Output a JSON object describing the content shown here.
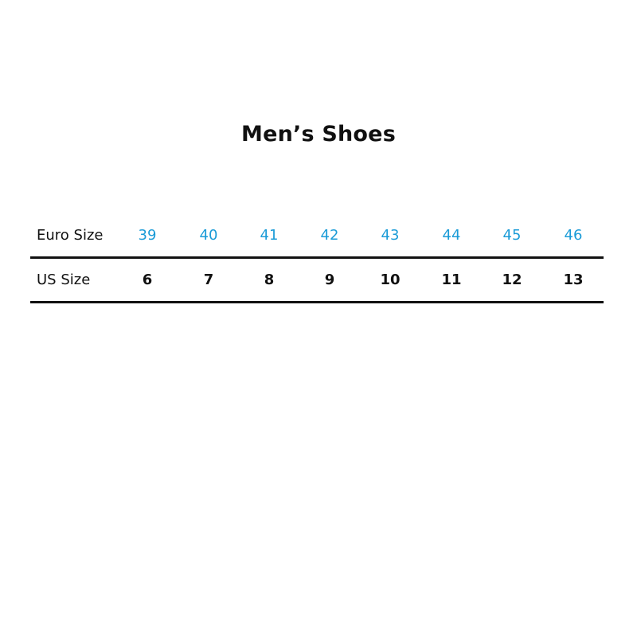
{
  "title": "Men’s Shoes",
  "accent_color": "#1a9bd7",
  "rows": [
    {
      "label": "Euro Size",
      "values": [
        "39",
        "40",
        "41",
        "42",
        "43",
        "44",
        "45",
        "46"
      ]
    },
    {
      "label": "US Size",
      "values": [
        "6",
        "7",
        "8",
        "9",
        "10",
        "11",
        "12",
        "13"
      ]
    }
  ]
}
